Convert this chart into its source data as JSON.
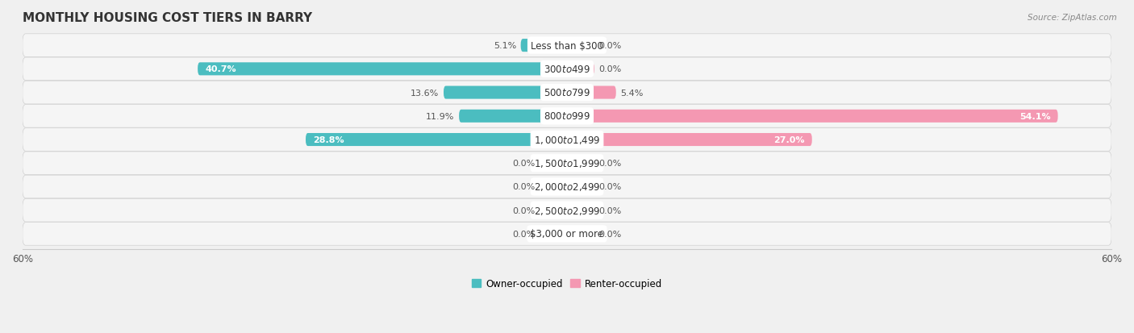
{
  "title": "MONTHLY HOUSING COST TIERS IN BARRY",
  "source": "Source: ZipAtlas.com",
  "categories": [
    "Less than $300",
    "$300 to $499",
    "$500 to $799",
    "$800 to $999",
    "$1,000 to $1,499",
    "$1,500 to $1,999",
    "$2,000 to $2,499",
    "$2,500 to $2,999",
    "$3,000 or more"
  ],
  "owner_values": [
    5.1,
    40.7,
    13.6,
    11.9,
    28.8,
    0.0,
    0.0,
    0.0,
    0.0
  ],
  "renter_values": [
    0.0,
    0.0,
    5.4,
    54.1,
    27.0,
    0.0,
    0.0,
    0.0,
    0.0
  ],
  "owner_color": "#4bbdc0",
  "renter_color": "#f498b2",
  "owner_color_dark": "#2fa0a3",
  "renter_color_dark": "#e8749a",
  "bg_color": "#f0f0f0",
  "row_color_light": "#f8f8f8",
  "row_color_dark": "#e8e8e8",
  "xlim": 60.0,
  "bar_height": 0.55,
  "stub_value": 3.0,
  "title_fontsize": 11,
  "label_fontsize": 8,
  "axis_label_fontsize": 8.5,
  "category_fontsize": 8.5
}
